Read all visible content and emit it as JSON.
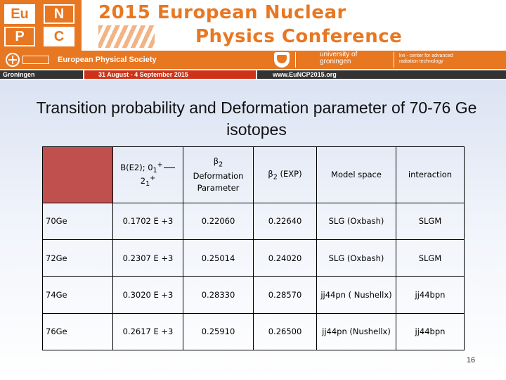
{
  "banner": {
    "logo_tiles": [
      "Eu",
      "N",
      "P",
      "C"
    ],
    "title_line1": "2015 European Nuclear",
    "title_line2": "Physics Conference",
    "society": "European Physical Society",
    "university": "university of\ngroningen",
    "kvi": "kvi - center for advanced\nradiation technology",
    "location": "Groningen",
    "dates": "31 August - 4 September 2015",
    "website": "www.EuNCP2015.org",
    "brand_color": "#e87722"
  },
  "slide": {
    "title": "Transition probability and Deformation parameter of 70-76 Ge isotopes",
    "page_number": "16"
  },
  "table": {
    "headers": {
      "be2_prefix": "B(E2); 0",
      "be2_sub1": "1",
      "be2_sup1": "+",
      "be2_mid": "2",
      "be2_sub2": "1",
      "be2_sup2": "+",
      "beta2_symbol": "β",
      "beta2_sub": "2",
      "beta2_text": "Deformation Parameter",
      "beta2_exp_symbol": "β",
      "beta2_exp_sub": "2",
      "beta2_exp_text": "(EXP)",
      "model_space": "Model space",
      "interaction": "interaction"
    },
    "rows": [
      {
        "isotope": "70Ge",
        "be2": "0.1702 E +3",
        "beta2": "0.22060",
        "beta2_exp": "0.22640",
        "model_space": "SLG (Oxbash)",
        "interaction": "SLGM"
      },
      {
        "isotope": "72Ge",
        "be2": "0.2307 E +3",
        "beta2": "0.25014",
        "beta2_exp": "0.24020",
        "model_space": "SLG (Oxbash)",
        "interaction": "SLGM"
      },
      {
        "isotope": "74Ge",
        "be2": "0.3020 E +3",
        "beta2": "0.28330",
        "beta2_exp": "0.28570",
        "model_space": "jj44pn ( Nushellx)",
        "interaction": "jj44bpn"
      },
      {
        "isotope": "76Ge",
        "be2": "0.2617 E +3",
        "beta2": "0.25910",
        "beta2_exp": "0.26500",
        "model_space": "jj44pn (Nushellx)",
        "interaction": "jj44bpn"
      }
    ],
    "corner_color": "#c0504d"
  }
}
